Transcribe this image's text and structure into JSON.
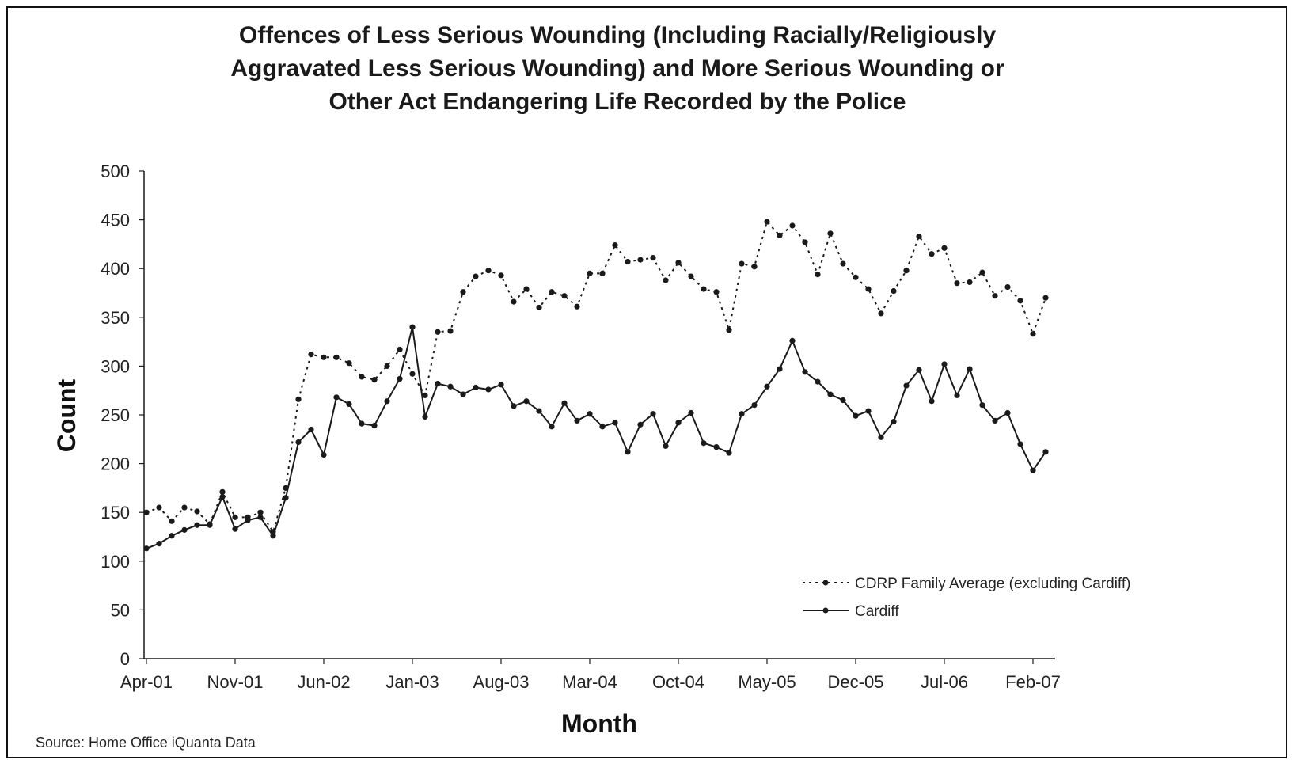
{
  "chart_data": {
    "type": "line",
    "title": [
      "Offences of Less Serious Wounding (Including Racially/Religiously",
      "Aggravated Less Serious Wounding) and More Serious Wounding or",
      "Other Act Endangering Life Recorded by the Police"
    ],
    "xlabel": "Month",
    "ylabel": "Count",
    "ylim": [
      0,
      500
    ],
    "yticks": [
      0,
      50,
      100,
      150,
      200,
      250,
      300,
      350,
      400,
      450,
      500
    ],
    "xtick_labels": [
      "Apr-01",
      "Nov-01",
      "Jun-02",
      "Jan-03",
      "Aug-03",
      "Mar-04",
      "Oct-04",
      "May-05",
      "Dec-05",
      "Jul-06",
      "Feb-07"
    ],
    "x_start": "Apr-01",
    "x_end": "Mar-07",
    "legend_position": "bottom-right",
    "grid": false,
    "source": "Source: Home Office iQuanta Data",
    "series": [
      {
        "name": "CDRP Family Average (excluding Cardiff)",
        "style": "dotted",
        "values": [
          150,
          155,
          141,
          155,
          151,
          138,
          171,
          145,
          145,
          150,
          130,
          175,
          266,
          312,
          309,
          309,
          303,
          289,
          286,
          300,
          317,
          292,
          270,
          335,
          336,
          376,
          392,
          398,
          393,
          366,
          379,
          360,
          376,
          372,
          361,
          395,
          395,
          424,
          407,
          409,
          411,
          388,
          406,
          392,
          379,
          376,
          337,
          405,
          402,
          448,
          434,
          444,
          427,
          394,
          436,
          405,
          391,
          379,
          354,
          377,
          398,
          433,
          415,
          421,
          385,
          386,
          396,
          372,
          381,
          367,
          333,
          370
        ]
      },
      {
        "name": "Cardiff",
        "style": "solid",
        "values": [
          113,
          118,
          126,
          132,
          137,
          137,
          166,
          133,
          142,
          145,
          126,
          165,
          222,
          235,
          209,
          268,
          261,
          241,
          239,
          264,
          287,
          340,
          248,
          282,
          279,
          271,
          278,
          276,
          281,
          259,
          264,
          254,
          238,
          262,
          244,
          251,
          238,
          242,
          212,
          240,
          251,
          218,
          242,
          252,
          221,
          217,
          211,
          251,
          260,
          279,
          297,
          326,
          294,
          284,
          271,
          265,
          249,
          254,
          227,
          243,
          280,
          296,
          264,
          302,
          270,
          297,
          260,
          244,
          252,
          220,
          193,
          212
        ]
      }
    ]
  },
  "colors": {
    "line": "#1a1a1a",
    "background": "#ffffff",
    "text": "#222222"
  }
}
